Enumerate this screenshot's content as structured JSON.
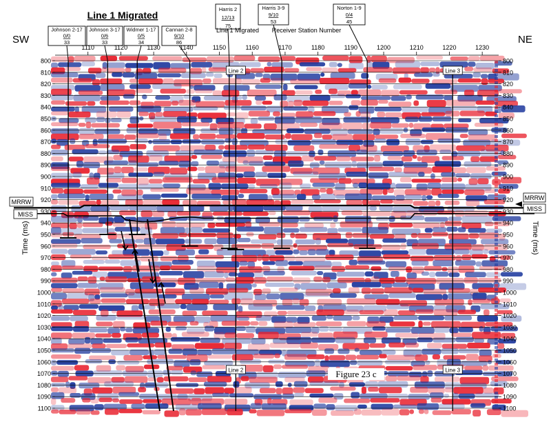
{
  "title": "Line 1 Migrated",
  "subtitle": "Line 1 Migrated",
  "receiver_label": "Receiver Station Number",
  "figure_label": "Figure 23 c",
  "direction_left": "SW",
  "direction_right": "NE",
  "y_axis_label": "Time (ms)",
  "horizons": {
    "upper": "MRRW",
    "lower": "MISS"
  },
  "line_ties": {
    "mid_label": "Line 2",
    "right_label": "Line 3"
  },
  "wells": [
    {
      "name": "Johnson 2-17",
      "line2": "0/0",
      "line3": "33",
      "station": 1104
    },
    {
      "name": "Johnson 3-17",
      "line2": "0/6",
      "line3": "33",
      "station": 1116
    },
    {
      "name": "Widmer 1-17",
      "line2": "0/5",
      "line3": "34",
      "station": 1125
    },
    {
      "name": "Cannan 2-8",
      "line2": "9/10",
      "line3": "86",
      "station": 1141
    },
    {
      "name": "Harris 2",
      "line2": "12/13",
      "line3": "75",
      "station": 1153
    },
    {
      "name": "Harris 3-9",
      "line2": "9/10",
      "line3": "53",
      "station": 1169
    },
    {
      "name": "Norton 1-9",
      "line2": "0/4",
      "line3": "45",
      "station": 1195
    }
  ],
  "x_ticks": [
    "1110",
    "1120",
    "1130",
    "1140",
    "1150",
    "1160",
    "1170",
    "1180",
    "1190",
    "1200",
    "1210",
    "1220",
    "1230"
  ],
  "y_ticks": [
    "800",
    "810",
    "820",
    "830",
    "840",
    "850",
    "860",
    "870",
    "880",
    "890",
    "900",
    "910",
    "920",
    "930",
    "940",
    "950",
    "960",
    "970",
    "980",
    "990",
    "1000",
    "1010",
    "1020",
    "1030",
    "1040",
    "1050",
    "1060",
    "1070",
    "1080",
    "1090",
    "1100"
  ],
  "colors": {
    "positive": "#e8202c",
    "negative": "#1f3a9e",
    "background": "#ffffff",
    "line": "#000000"
  }
}
